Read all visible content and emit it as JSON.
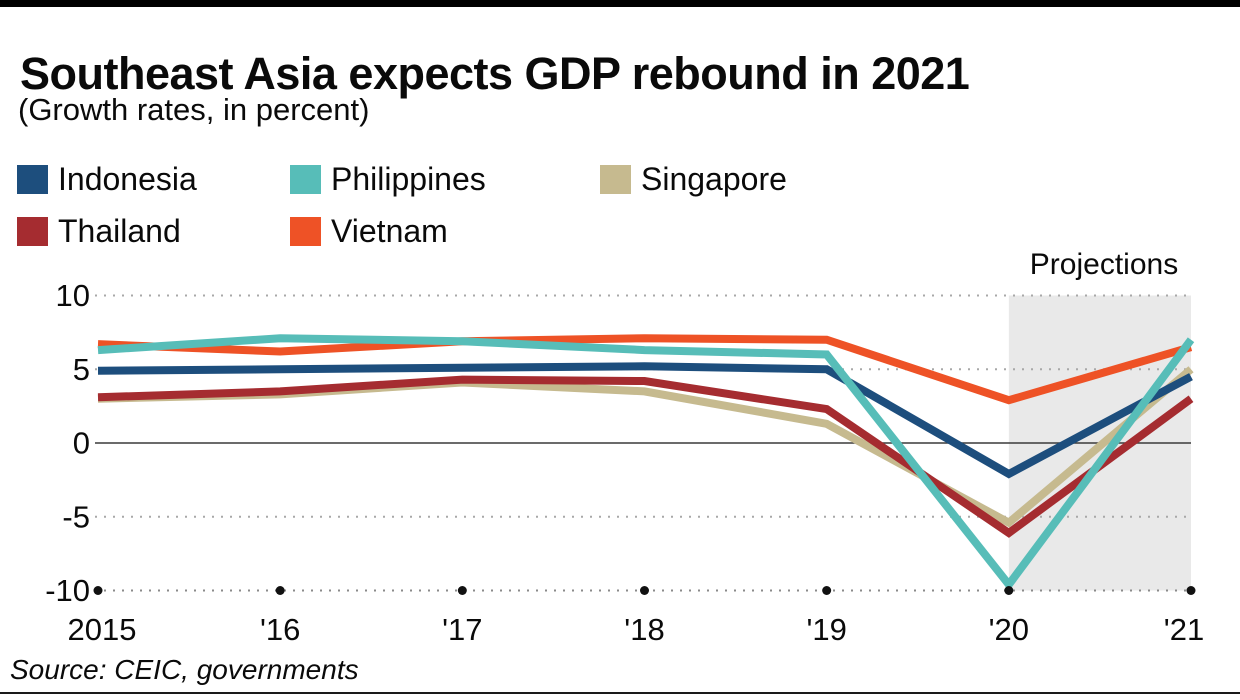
{
  "page": {
    "title": "Southeast Asia expects GDP rebound in 2021",
    "subtitle": "(Growth rates, in percent)",
    "source": "Source: CEIC, governments",
    "projections_label": "Projections"
  },
  "legend": {
    "items": [
      {
        "label": "Indonesia",
        "color": "#1d4e7d"
      },
      {
        "label": "Philippines",
        "color": "#57bdb8"
      },
      {
        "label": "Singapore",
        "color": "#c6ba8f"
      },
      {
        "label": "Thailand",
        "color": "#a52c30"
      },
      {
        "label": "Vietnam",
        "color": "#ee5226"
      }
    ]
  },
  "chart_data": {
    "type": "line",
    "title": "Southeast Asia expects GDP rebound in 2021",
    "ylabel": "Growth rates, in percent",
    "x_tick_labels": [
      "2015",
      "'16",
      "'17",
      "'18",
      "'19",
      "'20",
      "'21"
    ],
    "y_ticks": [
      10,
      5,
      0,
      -5,
      -10
    ],
    "ylim": [
      -10,
      10
    ],
    "grid": "dotted horizontal, solid zero line, dotted x-axis with black year dots",
    "legend_position": "top-left, two rows",
    "projection_region": {
      "from": "'20",
      "to": "'21",
      "label": "Projections",
      "fill": "#e9e9e9"
    },
    "series": [
      {
        "name": "Indonesia",
        "color": "#1d4e7d",
        "values": [
          4.9,
          5.0,
          5.1,
          5.2,
          5.0,
          -2.1,
          4.5
        ]
      },
      {
        "name": "Philippines",
        "color": "#57bdb8",
        "values": [
          6.3,
          7.1,
          6.9,
          6.3,
          6.0,
          -9.6,
          7.0
        ]
      },
      {
        "name": "Singapore",
        "color": "#c6ba8f",
        "values": [
          3.0,
          3.3,
          4.1,
          3.5,
          1.3,
          -5.4,
          5.0
        ]
      },
      {
        "name": "Thailand",
        "color": "#a52c30",
        "values": [
          3.1,
          3.5,
          4.3,
          4.2,
          2.3,
          -6.1,
          3.0
        ]
      },
      {
        "name": "Vietnam",
        "color": "#ee5226",
        "values": [
          6.7,
          6.2,
          6.9,
          7.1,
          7.0,
          2.9,
          6.5
        ]
      }
    ],
    "draw_order": [
      "Singapore",
      "Thailand",
      "Indonesia",
      "Vietnam",
      "Philippines"
    ],
    "colors": {
      "grid_dotted": "#a8a8a8",
      "zero_line": "#3a3a3a",
      "axis_dot": "#111111",
      "tick_text": "#0a0a0a"
    }
  }
}
